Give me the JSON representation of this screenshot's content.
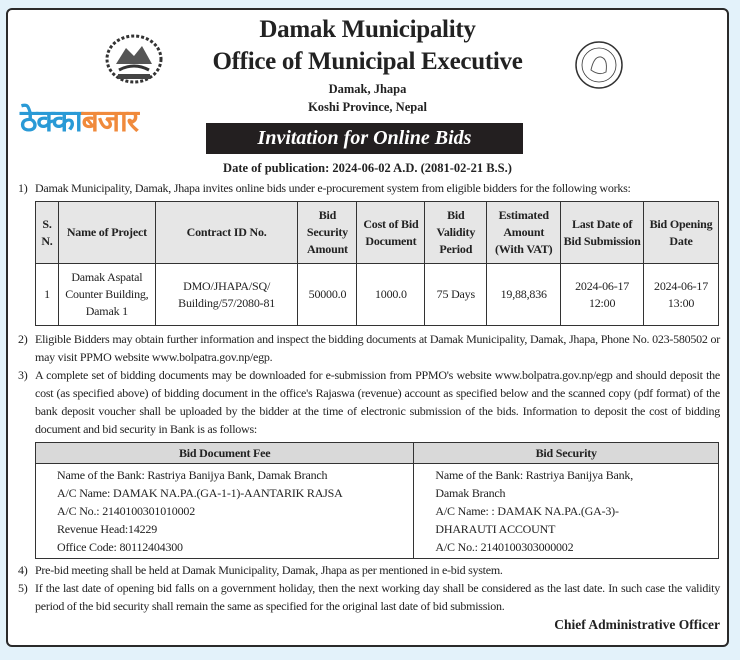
{
  "header": {
    "title": "Damak Municipality",
    "subtitle": "Office of Municipal Executive",
    "location": "Damak, Jhapa",
    "province": "Koshi Province, Nepal",
    "banner": "Invitation for Online Bids",
    "publication_date": "Date of publication: 2024-06-02 A.D. (2081-02-21 B.S.)",
    "emblem_icon": "nepal-government-emblem",
    "seal_icon": "damak-municipality-seal",
    "seal_text": "DAMAK MUNICIPALITY"
  },
  "para1": {
    "num": "1)",
    "text": "Damak Municipality, Damak, Jhapa invites online bids under e-procurement system from eligible bidders for the following works:"
  },
  "bids_table": {
    "headers": [
      "S. N.",
      "Name of Project",
      "Contract ID No.",
      "Bid Security Amount",
      "Cost of Bid Document",
      "Bid Validity Period",
      "Estimated Amount (With VAT)",
      "Last Date of Bid Submission",
      "Bid Opening Date"
    ],
    "rows": [
      [
        "1",
        "Damak Aspatal Counter Building, Damak 1",
        "DMO/JHAPA/SQ/ Building/57/2080-81",
        "50000.0",
        "1000.0",
        "75 Days",
        "19,88,836",
        "2024-06-17 12:00",
        "2024-06-17 13:00"
      ]
    ]
  },
  "para2": {
    "num": "2)",
    "text": "Eligible Bidders may obtain further information and inspect the bidding documents at Damak Municipality, Damak, Jhapa, Phone No. 023-580502 or may visit PPMO website www.bolpatra.gov.np/egp."
  },
  "para3": {
    "num": "3)",
    "text": "A complete set of bidding documents may be downloaded for e-submission from PPMO's website www.bolpatra.gov.np/egp and should deposit the cost (as specified above) of bidding document in the office's Rajaswa (revenue) account as specified below and the scanned copy (pdf format) of the bank deposit voucher shall be uploaded by the bidder at the time of electronic submission of the bids. Information to deposit the cost of bidding document and bid security in Bank is as follows:"
  },
  "bank_table": {
    "headers": [
      "Bid Document Fee",
      "Bid Security"
    ],
    "fee_lines": [
      "Name of the Bank: Rastriya Banijya Bank, Damak Branch",
      "A/C Name: DAMAK NA.PA.(GA-1-1)-AANTARIK RAJSA",
      "A/C No.: 2140100301010002",
      "Revenue Head:14229",
      "Office Code: 80112404300"
    ],
    "security_lines": [
      "Name of the Bank: Rastriya Banijya Bank,",
      "Damak Branch",
      "A/C Name: : DAMAK NA.PA.(GA-3)-",
      "DHARAUTI ACCOUNT",
      "A/C No.: 2140100303000002"
    ]
  },
  "para4": {
    "num": "4)",
    "text": "Pre-bid meeting shall be held at Damak Municipality, Damak, Jhapa as per mentioned in e-bid system."
  },
  "para5": {
    "num": "5)",
    "text": "If the last date of opening bid falls on a government holiday, then the next working day shall be considered as the last date. In such case the validity period of the bid security shall remain the same as specified for the original last date of bid submission."
  },
  "signature": "Chief Administrative Officer",
  "watermark": {
    "part1": "ठेक्का",
    "part2": "बजार",
    "color1": "#2a9ad6",
    "color2": "#f08a3c"
  }
}
